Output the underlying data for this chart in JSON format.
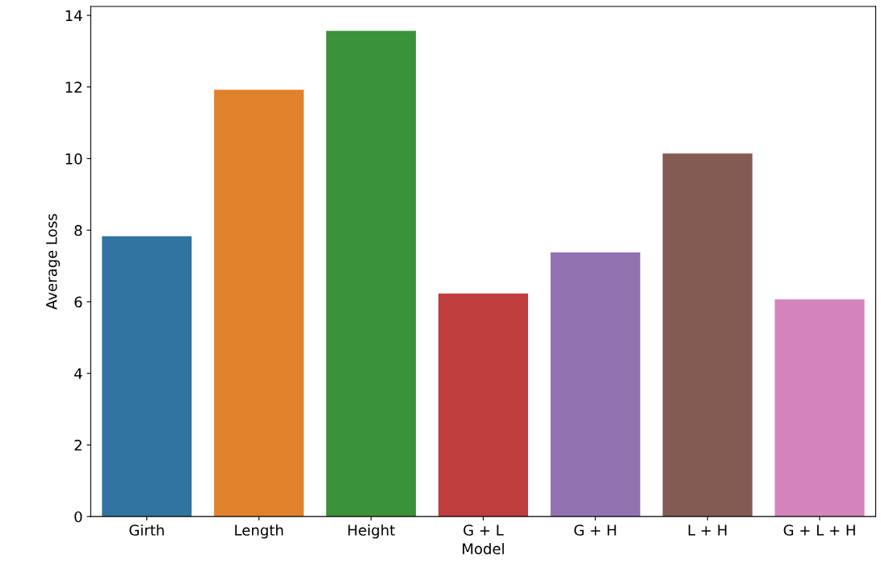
{
  "chart_data": {
    "type": "bar",
    "xlabel": "Model",
    "ylabel": "Average Loss",
    "categories": [
      "Girth",
      "Length",
      "Height",
      "G + L",
      "G + H",
      "L + H",
      "G + L + H"
    ],
    "values": [
      7.83,
      11.92,
      13.57,
      6.23,
      7.38,
      10.14,
      6.07
    ],
    "colors": [
      "#3274a1",
      "#e1812c",
      "#3a923a",
      "#c03d3e",
      "#9372b2",
      "#845b53",
      "#d684bd"
    ],
    "ylim": [
      0,
      14.25
    ],
    "yticks": [
      0,
      2,
      4,
      6,
      8,
      10,
      12,
      14
    ],
    "grid": false,
    "legend": false
  }
}
